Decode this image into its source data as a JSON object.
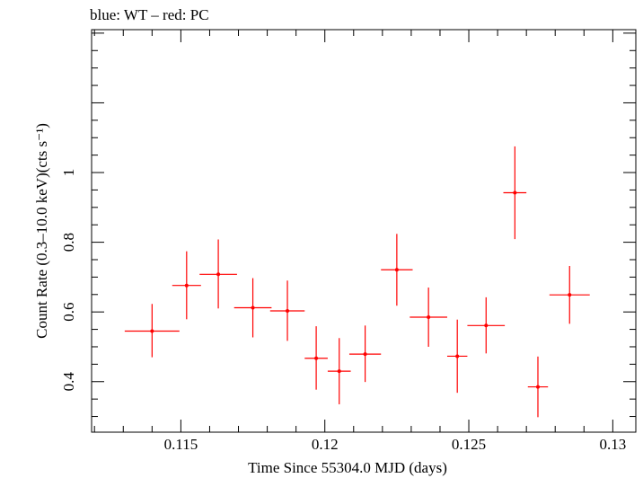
{
  "header": {
    "text": "blue: WT – red: PC"
  },
  "colors": {
    "pc": "#ff0000",
    "axis": "#000000"
  },
  "chart_data": {
    "type": "scatter",
    "title": "blue: WT – red: PC",
    "xlabel": "Time Since 55304.0 MJD (days)",
    "ylabel": "Count Rate (0.3–10.0 keV)(cts s⁻¹)",
    "xlim": [
      0.1119,
      0.1308
    ],
    "ylim": [
      0.255,
      1.41
    ],
    "x_ticks": [
      0.115,
      0.12,
      0.125,
      0.13
    ],
    "x_tick_labels": [
      "0.115",
      "0.12",
      "0.125",
      "0.13"
    ],
    "y_ticks": [
      0.4,
      0.6,
      0.8,
      1.0
    ],
    "y_tick_labels": [
      "0.4",
      "0.6",
      "0.8",
      "1"
    ],
    "grid": false,
    "series": [
      {
        "name": "PC",
        "color": "#ff0000",
        "points": [
          {
            "x": 0.114,
            "y": 0.545,
            "xerr": 0.00095,
            "yerr_lo": 0.075,
            "yerr_hi": 0.078
          },
          {
            "x": 0.1152,
            "y": 0.676,
            "xerr": 0.0005,
            "yerr_lo": 0.097,
            "yerr_hi": 0.098
          },
          {
            "x": 0.1163,
            "y": 0.708,
            "xerr": 0.00065,
            "yerr_lo": 0.098,
            "yerr_hi": 0.1
          },
          {
            "x": 0.1175,
            "y": 0.612,
            "xerr": 0.00065,
            "yerr_lo": 0.085,
            "yerr_hi": 0.085
          },
          {
            "x": 0.1187,
            "y": 0.603,
            "xerr": 0.0006,
            "yerr_lo": 0.086,
            "yerr_hi": 0.087
          },
          {
            "x": 0.1197,
            "y": 0.467,
            "xerr": 0.0004,
            "yerr_lo": 0.09,
            "yerr_hi": 0.092
          },
          {
            "x": 0.1205,
            "y": 0.43,
            "xerr": 0.0004,
            "yerr_lo": 0.095,
            "yerr_hi": 0.095
          },
          {
            "x": 0.1214,
            "y": 0.479,
            "xerr": 0.00055,
            "yerr_lo": 0.08,
            "yerr_hi": 0.082
          },
          {
            "x": 0.1225,
            "y": 0.721,
            "xerr": 0.00055,
            "yerr_lo": 0.103,
            "yerr_hi": 0.103
          },
          {
            "x": 0.1236,
            "y": 0.585,
            "xerr": 0.00065,
            "yerr_lo": 0.085,
            "yerr_hi": 0.085
          },
          {
            "x": 0.1246,
            "y": 0.473,
            "xerr": 0.00035,
            "yerr_lo": 0.105,
            "yerr_hi": 0.105
          },
          {
            "x": 0.1256,
            "y": 0.561,
            "xerr": 0.00065,
            "yerr_lo": 0.08,
            "yerr_hi": 0.081
          },
          {
            "x": 0.1266,
            "y": 0.942,
            "xerr": 0.0004,
            "yerr_lo": 0.133,
            "yerr_hi": 0.133
          },
          {
            "x": 0.1274,
            "y": 0.385,
            "xerr": 0.00035,
            "yerr_lo": 0.087,
            "yerr_hi": 0.087
          },
          {
            "x": 0.1285,
            "y": 0.649,
            "xerr": 0.0007,
            "yerr_lo": 0.083,
            "yerr_hi": 0.083
          }
        ]
      }
    ]
  }
}
